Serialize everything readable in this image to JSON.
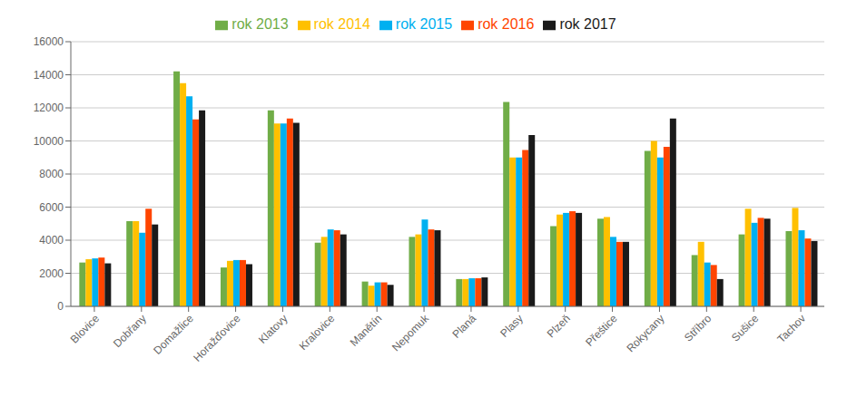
{
  "chart_data": {
    "type": "bar",
    "categories": [
      "Blovice",
      "Dobřany",
      "Domažlice",
      "Horažďovice",
      "Klatovy",
      "Kralovice",
      "Manětín",
      "Nepomuk",
      "Planá",
      "Plasy",
      "Plzeň",
      "Přeštice",
      "Rokycany",
      "Stříbro",
      "Sušice",
      "Tachov"
    ],
    "series": [
      {
        "name": "rok 2013",
        "color": "#70AD47",
        "values": [
          2650,
          5150,
          14200,
          2350,
          11850,
          3850,
          1500,
          4200,
          1650,
          12350,
          4850,
          5300,
          9400,
          3100,
          4350,
          4550
        ]
      },
      {
        "name": "rok 2014",
        "color": "#FFC000",
        "values": [
          2850,
          5150,
          13500,
          2750,
          11050,
          4200,
          1250,
          4350,
          1650,
          9000,
          5550,
          5400,
          10000,
          3900,
          5900,
          5950
        ]
      },
      {
        "name": "rok 2015",
        "color": "#00B0F0",
        "values": [
          2900,
          4450,
          12700,
          2800,
          11050,
          4650,
          1450,
          5250,
          1700,
          9000,
          5650,
          4200,
          9000,
          2650,
          5050,
          4600
        ]
      },
      {
        "name": "rok 2016",
        "color": "#FF4500",
        "values": [
          2950,
          5900,
          11300,
          2800,
          11350,
          4600,
          1450,
          4650,
          1700,
          9450,
          5750,
          3900,
          9650,
          2500,
          5350,
          4100
        ]
      },
      {
        "name": "rok 2017",
        "color": "#1a1a1a",
        "values": [
          2600,
          4950,
          11850,
          2550,
          11100,
          4350,
          1300,
          4600,
          1750,
          10350,
          5650,
          3900,
          11350,
          1650,
          5300,
          3950
        ]
      }
    ],
    "ylim": [
      0,
      16000
    ],
    "yticks": [
      0,
      2000,
      4000,
      6000,
      8000,
      10000,
      12000,
      14000,
      16000
    ],
    "grid": true,
    "legend": "top"
  }
}
